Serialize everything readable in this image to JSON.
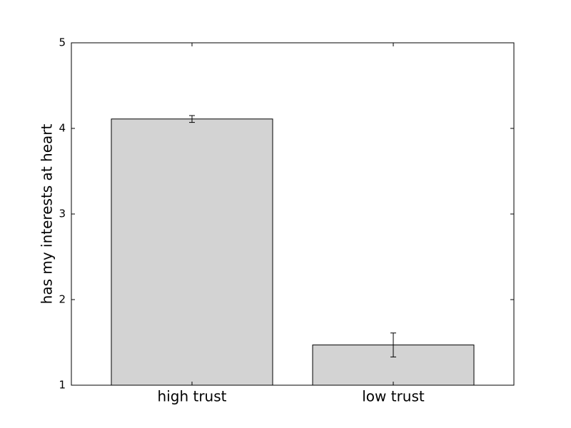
{
  "chart_data": {
    "type": "bar",
    "categories": [
      "high trust",
      "low trust"
    ],
    "values": [
      4.11,
      1.47
    ],
    "errors": [
      0.04,
      0.14
    ],
    "color": "#d3d3d3",
    "ylabel": "has my interests at heart",
    "ylim": [
      1,
      5
    ],
    "yticks": [
      1,
      2,
      3,
      4,
      5
    ],
    "grid": false
  }
}
